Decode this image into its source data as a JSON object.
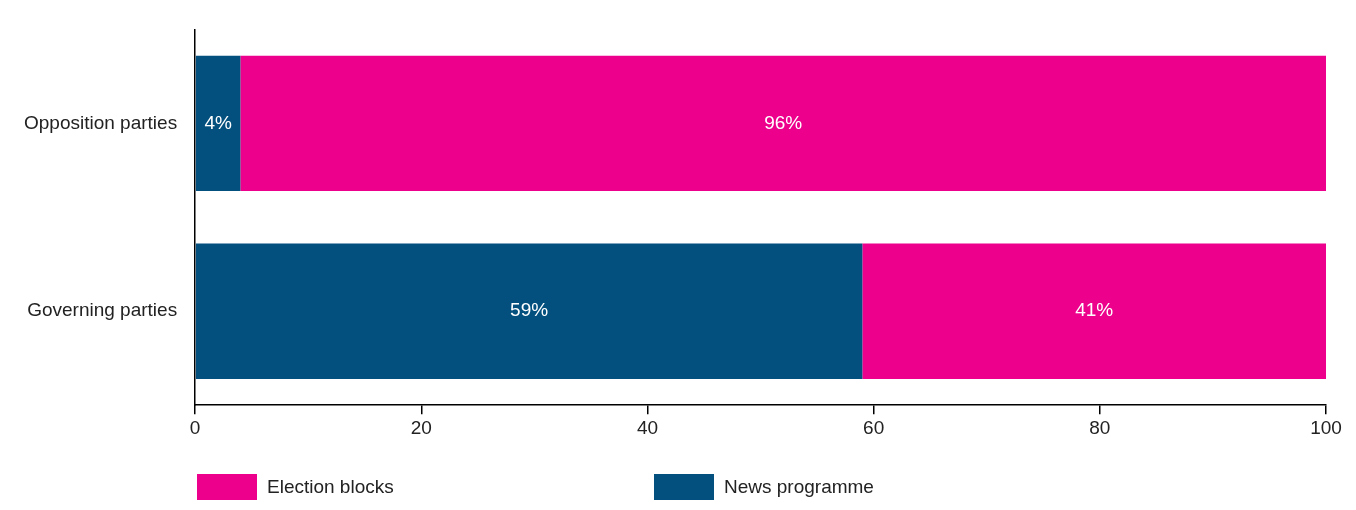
{
  "chart_data": {
    "type": "bar",
    "orientation": "horizontal",
    "stacked": true,
    "categories": [
      "Opposition parties",
      "Governing parties"
    ],
    "series": [
      {
        "name": "News programme",
        "color": "#034f7d",
        "values": [
          4,
          59
        ],
        "value_labels": [
          "4%",
          "59%"
        ]
      },
      {
        "name": "Election blocks",
        "color": "#ec008c",
        "values": [
          96,
          41
        ],
        "value_labels": [
          "96%",
          "41%"
        ]
      }
    ],
    "xlim": [
      0,
      100
    ],
    "xticks": [
      0,
      20,
      40,
      60,
      80,
      100
    ],
    "grid": false,
    "legend": "bottom"
  }
}
